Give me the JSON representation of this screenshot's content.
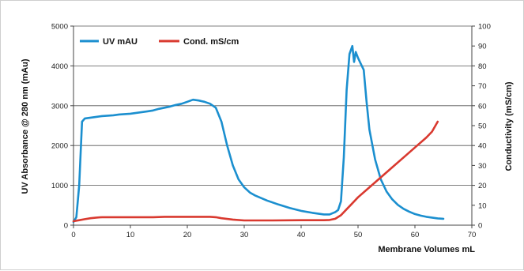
{
  "chart_data": {
    "type": "line",
    "xlabel": "Membrane Volumes mL",
    "ylabel_left": "UV Absorbance @ 280 nm (mAu)",
    "ylabel_right": "Conductivity (mS/cm)",
    "xlim": [
      0,
      70
    ],
    "ylim_left": [
      0,
      5000
    ],
    "ylim_right": [
      0,
      100
    ],
    "x_ticks": [
      "0",
      "10",
      "20",
      "30",
      "40",
      "50",
      "60",
      "70"
    ],
    "y_ticks_left": [
      "0",
      "1000",
      "2000",
      "3000",
      "4000",
      "5000"
    ],
    "y_ticks_right": [
      "0",
      "10",
      "20",
      "30",
      "40",
      "50",
      "60",
      "70",
      "80",
      "90",
      "100"
    ],
    "grid": "horizontal",
    "legend_position": "top-left",
    "series": [
      {
        "name": "UV mAU",
        "axis": "left",
        "color": "#1b8fcf",
        "x": [
          0,
          0.5,
          1.0,
          1.5,
          2,
          3,
          4,
          5,
          6,
          7,
          8,
          9,
          10,
          11,
          12,
          13,
          14,
          15,
          16,
          17,
          18,
          19,
          20,
          21,
          22,
          23,
          24,
          25,
          26,
          27,
          28,
          29,
          30,
          31,
          32,
          34,
          36,
          38,
          40,
          42,
          44,
          45,
          46,
          46.5,
          47,
          47.5,
          48,
          48.5,
          49,
          49.3,
          49.6,
          50,
          50.5,
          51,
          51.5,
          52,
          53,
          54,
          55,
          56,
          57,
          58,
          59,
          60,
          61,
          62,
          63,
          64,
          65
        ],
        "y": [
          80,
          200,
          1000,
          2600,
          2680,
          2700,
          2720,
          2740,
          2750,
          2760,
          2780,
          2790,
          2800,
          2820,
          2840,
          2860,
          2880,
          2920,
          2950,
          2980,
          3020,
          3050,
          3100,
          3150,
          3130,
          3100,
          3050,
          2950,
          2600,
          2000,
          1500,
          1150,
          950,
          820,
          740,
          620,
          520,
          430,
          360,
          310,
          270,
          270,
          330,
          380,
          600,
          1700,
          3400,
          4300,
          4500,
          4100,
          4350,
          4200,
          4050,
          3900,
          3100,
          2400,
          1650,
          1150,
          850,
          650,
          510,
          410,
          340,
          280,
          240,
          210,
          190,
          170,
          160
        ]
      },
      {
        "name": "Cond. mS/cm",
        "axis": "right",
        "color": "#d9392f",
        "x": [
          0,
          1,
          2,
          3,
          4,
          5,
          8,
          10,
          14,
          16,
          20,
          24,
          25,
          26,
          28,
          30,
          35,
          40,
          44,
          45,
          46,
          47,
          48,
          49,
          50,
          52,
          54,
          56,
          58,
          60,
          62,
          63,
          64
        ],
        "y": [
          2,
          2.5,
          3,
          3.5,
          3.8,
          4,
          4,
          4,
          4,
          4.2,
          4.2,
          4.2,
          4,
          3.5,
          2.8,
          2.4,
          2.4,
          2.5,
          2.5,
          2.6,
          3.2,
          5,
          8,
          11,
          14,
          19,
          24,
          29,
          34,
          39,
          44,
          47,
          52
        ]
      }
    ]
  }
}
